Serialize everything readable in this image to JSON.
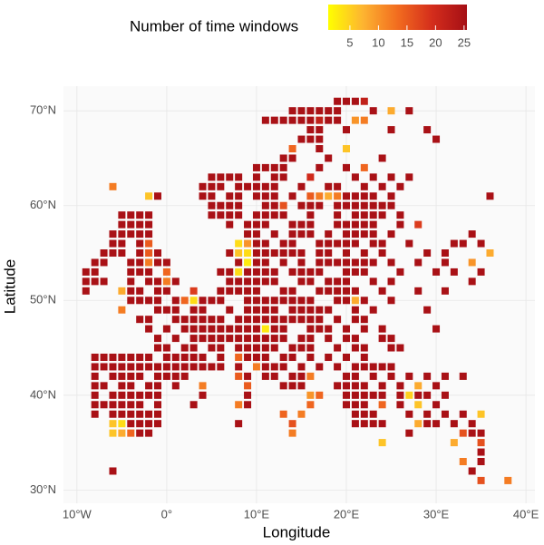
{
  "chart_data": {
    "type": "tile-map",
    "legend_title": "Number of time windows",
    "xlabel": "Longitude",
    "ylabel": "Latitude",
    "xlim": [
      -11.5,
      41
    ],
    "ylim": [
      28.6,
      72.6
    ],
    "xticks": [
      {
        "value": -10,
        "label": "10°W"
      },
      {
        "value": 0,
        "label": "0°"
      },
      {
        "value": 10,
        "label": "10°E"
      },
      {
        "value": 20,
        "label": "20°E"
      },
      {
        "value": 30,
        "label": "30°E"
      },
      {
        "value": 40,
        "label": "40°E"
      }
    ],
    "yticks": [
      {
        "value": 30,
        "label": "30°N"
      },
      {
        "value": 40,
        "label": "40°N"
      },
      {
        "value": 50,
        "label": "50°N"
      },
      {
        "value": 60,
        "label": "60°N"
      },
      {
        "value": 70,
        "label": "70°N"
      }
    ],
    "grid": true,
    "clim": [
      1.2,
      25.5
    ],
    "colorbar_ticks": [
      5,
      10,
      15,
      20,
      25
    ],
    "colors": [
      "#ffff00",
      "#fdb431",
      "#f26c1f",
      "#d42d1c",
      "#a50f15"
    ],
    "x": [
      19,
      20,
      21,
      22,
      14,
      15,
      16,
      17,
      18,
      19,
      23,
      25,
      27,
      11,
      12,
      13,
      14,
      15,
      16,
      17,
      18,
      19,
      21,
      22,
      16,
      17,
      20,
      25,
      29,
      15,
      16,
      17,
      30,
      14,
      17,
      20,
      13,
      14,
      18,
      24,
      10,
      11,
      12,
      13,
      17,
      20,
      22,
      5,
      6,
      7,
      8,
      10,
      12,
      13,
      16,
      21,
      23,
      25,
      27,
      -6,
      4,
      5,
      6,
      8,
      9,
      10,
      11,
      12,
      15,
      18,
      19,
      22,
      24,
      26,
      -2,
      -1,
      4,
      5,
      7,
      8,
      10,
      11,
      12,
      14,
      16,
      17,
      18,
      19,
      20,
      21,
      22,
      23,
      25,
      36,
      5,
      6,
      7,
      8,
      11,
      12,
      13,
      15,
      16,
      17,
      19,
      20,
      21,
      22,
      23,
      24,
      25,
      -5,
      -4,
      -3,
      -2,
      5,
      6,
      7,
      8,
      10,
      11,
      12,
      13,
      16,
      19,
      21,
      22,
      23,
      24,
      26,
      -5,
      -4,
      -3,
      -2,
      7,
      9,
      10,
      11,
      14,
      15,
      16,
      19,
      20,
      21,
      22,
      23,
      26,
      28,
      -6,
      -5,
      -4,
      -3,
      -2,
      9,
      10,
      12,
      14,
      15,
      16,
      18,
      20,
      21,
      22,
      23,
      25,
      34,
      -6,
      -5,
      -3,
      -2,
      8,
      9,
      10,
      11,
      13,
      14,
      17,
      18,
      19,
      20,
      21,
      23,
      24,
      27,
      32,
      33,
      35,
      -7,
      -6,
      -5,
      -3,
      -2,
      -1,
      7,
      8,
      9,
      10,
      11,
      12,
      13,
      14,
      15,
      17,
      18,
      20,
      22,
      24,
      29,
      31,
      36,
      -8,
      -7,
      -4,
      -3,
      -2,
      -1,
      0,
      8,
      9,
      10,
      11,
      13,
      15,
      17,
      18,
      19,
      20,
      21,
      22,
      23,
      25,
      28,
      31,
      34,
      -9,
      -8,
      -4,
      -3,
      -2,
      0,
      6,
      7,
      8,
      9,
      10,
      11,
      12,
      14,
      15,
      16,
      17,
      20,
      21,
      22,
      26,
      30,
      32,
      35,
      -9,
      -8,
      -7,
      -4,
      -2,
      -1,
      0,
      1,
      7,
      8,
      9,
      10,
      11,
      12,
      15,
      16,
      18,
      19,
      20,
      23,
      25,
      34,
      -9,
      -5,
      -4,
      -3,
      -1,
      0,
      3,
      6,
      7,
      8,
      9,
      10,
      13,
      14,
      17,
      18,
      19,
      20,
      21,
      24,
      28,
      31,
      -4,
      -3,
      -2,
      -1,
      1,
      2,
      3,
      4,
      5,
      6,
      9,
      10,
      11,
      12,
      13,
      14,
      15,
      16,
      19,
      20,
      21,
      22,
      25,
      -5,
      -1,
      0,
      1,
      3,
      4,
      7,
      9,
      10,
      11,
      12,
      14,
      15,
      16,
      17,
      18,
      21,
      23,
      29,
      -3,
      -2,
      1,
      2,
      3,
      4,
      5,
      6,
      8,
      9,
      10,
      11,
      12,
      13,
      14,
      15,
      16,
      17,
      19,
      21,
      22,
      -2,
      0,
      2,
      3,
      4,
      5,
      6,
      7,
      8,
      9,
      10,
      11,
      12,
      13,
      16,
      17,
      18,
      20,
      22,
      24,
      30,
      -1,
      1,
      3,
      4,
      5,
      6,
      7,
      8,
      9,
      10,
      11,
      12,
      13,
      15,
      16,
      18,
      20,
      21,
      24,
      25,
      -1,
      0,
      2,
      3,
      5,
      6,
      8,
      9,
      10,
      11,
      12,
      14,
      15,
      16,
      19,
      21,
      22,
      25,
      26,
      -8,
      -7,
      -6,
      -5,
      -4,
      -3,
      -2,
      0,
      1,
      2,
      3,
      4,
      6,
      8,
      9,
      10,
      11,
      13,
      14,
      16,
      18,
      20,
      22,
      -8,
      -7,
      -6,
      -5,
      -4,
      -3,
      -2,
      -1,
      0,
      1,
      2,
      3,
      4,
      5,
      6,
      8,
      10,
      11,
      12,
      13,
      15,
      17,
      19,
      21,
      22,
      23,
      24,
      25,
      -8,
      -6,
      -5,
      -4,
      -3,
      -1,
      0,
      1,
      2,
      8,
      9,
      11,
      12,
      14,
      15,
      16,
      20,
      21,
      23,
      25,
      27,
      29,
      31,
      33,
      -8,
      -7,
      -5,
      -4,
      -2,
      -1,
      1,
      4,
      9,
      13,
      14,
      15,
      19,
      20,
      21,
      22,
      24,
      26,
      28,
      30,
      -8,
      -6,
      -5,
      -4,
      -3,
      -2,
      -1,
      4,
      9,
      16,
      17,
      20,
      21,
      22,
      23,
      24,
      26,
      27,
      28,
      29,
      31,
      -8,
      -7,
      -6,
      -5,
      -4,
      -3,
      -1,
      3,
      8,
      9,
      16,
      20,
      21,
      22,
      24,
      26,
      28,
      30,
      -8,
      -6,
      -5,
      -4,
      -3,
      -2,
      -1,
      13,
      15,
      21,
      22,
      23,
      27,
      29,
      31,
      33,
      35,
      -6,
      -5,
      -4,
      -3,
      -2,
      -1,
      8,
      14,
      21,
      22,
      23,
      24,
      28,
      29,
      30,
      32,
      34,
      -6,
      -5,
      -4,
      -3,
      -2,
      14,
      27,
      33,
      34,
      35,
      24,
      32,
      35,
      35,
      33,
      35,
      -6,
      34,
      35,
      38
    ],
    "y": [
      71,
      71,
      71,
      71,
      70,
      70,
      70,
      70,
      70,
      70,
      70,
      70,
      70,
      69,
      69,
      69,
      69,
      69,
      69,
      69,
      69,
      69,
      69,
      69,
      68,
      68,
      68,
      68,
      68,
      67,
      67,
      67,
      67,
      66,
      66,
      66,
      65,
      65,
      65,
      65,
      64,
      64,
      64,
      64,
      64,
      64,
      64,
      63,
      63,
      63,
      63,
      63,
      63,
      63,
      63,
      63,
      63,
      63,
      63,
      62,
      62,
      62,
      62,
      62,
      62,
      62,
      62,
      62,
      62,
      62,
      62,
      62,
      62,
      62,
      61,
      61,
      61,
      61,
      61,
      61,
      61,
      61,
      61,
      61,
      61,
      61,
      61,
      61,
      61,
      61,
      61,
      61,
      61,
      61,
      60,
      60,
      60,
      60,
      60,
      60,
      60,
      60,
      60,
      60,
      60,
      60,
      60,
      60,
      60,
      60,
      60,
      59,
      59,
      59,
      59,
      59,
      59,
      59,
      59,
      59,
      59,
      59,
      59,
      59,
      59,
      59,
      59,
      59,
      59,
      59,
      58,
      58,
      58,
      58,
      58,
      58,
      58,
      58,
      58,
      58,
      58,
      58,
      58,
      58,
      58,
      58,
      58,
      58,
      57,
      57,
      57,
      57,
      57,
      57,
      57,
      57,
      57,
      57,
      57,
      57,
      57,
      57,
      57,
      57,
      57,
      57,
      56,
      56,
      56,
      56,
      56,
      56,
      56,
      56,
      56,
      56,
      56,
      56,
      56,
      56,
      56,
      56,
      56,
      56,
      56,
      56,
      56,
      55,
      55,
      55,
      55,
      55,
      55,
      55,
      55,
      55,
      55,
      55,
      55,
      55,
      55,
      55,
      55,
      55,
      55,
      55,
      55,
      55,
      55,
      55,
      54,
      54,
      54,
      54,
      54,
      54,
      54,
      54,
      54,
      54,
      54,
      54,
      54,
      54,
      54,
      54,
      54,
      54,
      54,
      54,
      54,
      54,
      54,
      54,
      53,
      53,
      53,
      53,
      53,
      53,
      53,
      53,
      53,
      53,
      53,
      53,
      53,
      53,
      53,
      53,
      53,
      53,
      53,
      53,
      53,
      53,
      53,
      53,
      52,
      52,
      52,
      52,
      52,
      52,
      52,
      52,
      52,
      52,
      52,
      52,
      52,
      52,
      52,
      52,
      52,
      52,
      52,
      52,
      52,
      52,
      51,
      51,
      51,
      51,
      51,
      51,
      51,
      51,
      51,
      51,
      51,
      51,
      51,
      51,
      51,
      51,
      51,
      51,
      51,
      51,
      51,
      51,
      50,
      50,
      50,
      50,
      50,
      50,
      50,
      50,
      50,
      50,
      50,
      50,
      50,
      50,
      50,
      50,
      50,
      50,
      50,
      50,
      50,
      50,
      50,
      49,
      49,
      49,
      49,
      49,
      49,
      49,
      49,
      49,
      49,
      49,
      49,
      49,
      49,
      49,
      49,
      49,
      49,
      49,
      48,
      48,
      48,
      48,
      48,
      48,
      48,
      48,
      48,
      48,
      48,
      48,
      48,
      48,
      48,
      48,
      48,
      48,
      48,
      48,
      48,
      47,
      47,
      47,
      47,
      47,
      47,
      47,
      47,
      47,
      47,
      47,
      47,
      47,
      47,
      47,
      47,
      47,
      47,
      47,
      47,
      47,
      46,
      46,
      46,
      46,
      46,
      46,
      46,
      46,
      46,
      46,
      46,
      46,
      46,
      46,
      46,
      46,
      46,
      46,
      46,
      46,
      45,
      45,
      45,
      45,
      45,
      45,
      45,
      45,
      45,
      45,
      45,
      45,
      45,
      45,
      45,
      45,
      45,
      45,
      45,
      44,
      44,
      44,
      44,
      44,
      44,
      44,
      44,
      44,
      44,
      44,
      44,
      44,
      44,
      44,
      44,
      44,
      44,
      44,
      44,
      44,
      44,
      44,
      43,
      43,
      43,
      43,
      43,
      43,
      43,
      43,
      43,
      43,
      43,
      43,
      43,
      43,
      43,
      43,
      43,
      43,
      43,
      43,
      43,
      43,
      43,
      43,
      43,
      43,
      43,
      43,
      42,
      42,
      42,
      42,
      42,
      42,
      42,
      42,
      42,
      42,
      42,
      42,
      42,
      42,
      42,
      42,
      42,
      42,
      42,
      42,
      42,
      42,
      42,
      42,
      41,
      41,
      41,
      41,
      41,
      41,
      41,
      41,
      41,
      41,
      41,
      41,
      41,
      41,
      41,
      41,
      41,
      41,
      41,
      41,
      40,
      40,
      40,
      40,
      40,
      40,
      40,
      40,
      40,
      40,
      40,
      40,
      40,
      40,
      40,
      40,
      40,
      40,
      40,
      40,
      40,
      39,
      39,
      39,
      39,
      39,
      39,
      39,
      39,
      39,
      39,
      39,
      39,
      39,
      39,
      39,
      39,
      39,
      39,
      38,
      38,
      38,
      38,
      38,
      38,
      38,
      38,
      38,
      38,
      38,
      38,
      38,
      38,
      38,
      38,
      38,
      37,
      37,
      37,
      37,
      37,
      37,
      37,
      37,
      37,
      37,
      37,
      37,
      37,
      37,
      37,
      37,
      37,
      36,
      36,
      36,
      36,
      36,
      36,
      36,
      36,
      36,
      36,
      35,
      35,
      35,
      34,
      33,
      33,
      32,
      32,
      31,
      31
    ],
    "values": [
      25,
      25,
      25,
      22,
      25,
      25,
      25,
      25,
      25,
      25,
      25,
      8,
      25,
      25,
      25,
      25,
      25,
      25,
      25,
      22,
      25,
      25,
      10,
      12,
      25,
      25,
      25,
      25,
      25,
      25,
      25,
      25,
      25,
      14,
      25,
      6,
      25,
      25,
      25,
      25,
      25,
      25,
      25,
      25,
      25,
      25,
      14,
      25,
      25,
      25,
      25,
      25,
      25,
      25,
      20,
      25,
      25,
      25,
      25,
      12,
      25,
      25,
      25,
      25,
      25,
      25,
      25,
      25,
      25,
      25,
      25,
      25,
      25,
      25,
      6,
      25,
      25,
      25,
      25,
      25,
      25,
      25,
      25,
      25,
      15,
      12,
      8,
      12,
      25,
      25,
      25,
      25,
      25,
      25,
      25,
      25,
      25,
      25,
      25,
      25,
      16,
      25,
      25,
      25,
      25,
      25,
      25,
      25,
      25,
      25,
      25,
      25,
      25,
      25,
      25,
      25,
      25,
      25,
      25,
      25,
      25,
      25,
      25,
      25,
      25,
      25,
      25,
      25,
      25,
      25,
      25,
      25,
      25,
      25,
      25,
      25,
      25,
      25,
      25,
      25,
      25,
      25,
      25,
      25,
      25,
      25,
      25,
      18,
      25,
      25,
      25,
      25,
      25,
      25,
      25,
      25,
      25,
      25,
      25,
      25,
      25,
      25,
      25,
      25,
      25,
      25,
      25,
      25,
      25,
      15,
      4,
      10,
      25,
      25,
      25,
      25,
      25,
      25,
      25,
      25,
      25,
      25,
      25,
      25,
      25,
      25,
      25,
      25,
      25,
      25,
      25,
      15,
      25,
      25,
      6,
      4,
      25,
      25,
      25,
      25,
      25,
      25,
      25,
      25,
      25,
      25,
      25,
      25,
      25,
      8,
      25,
      25,
      25,
      25,
      12,
      25,
      25,
      25,
      3,
      25,
      25,
      25,
      25,
      25,
      25,
      25,
      25,
      25,
      25,
      25,
      25,
      25,
      25,
      10,
      25,
      25,
      25,
      25,
      25,
      14,
      25,
      25,
      4,
      25,
      25,
      25,
      25,
      25,
      25,
      25,
      25,
      25,
      25,
      25,
      25,
      25,
      25,
      25,
      25,
      25,
      25,
      25,
      25,
      25,
      12,
      25,
      25,
      25,
      25,
      25,
      25,
      25,
      25,
      25,
      25,
      25,
      25,
      25,
      25,
      25,
      25,
      8,
      25,
      25,
      25,
      25,
      18,
      25,
      25,
      25,
      25,
      25,
      25,
      25,
      25,
      25,
      25,
      25,
      25,
      25,
      25,
      25,
      25,
      25,
      25,
      25,
      25,
      14,
      4,
      25,
      25,
      25,
      25,
      25,
      25,
      25,
      25,
      25,
      25,
      25,
      25,
      25,
      8,
      25,
      25,
      12,
      25,
      25,
      25,
      25,
      25,
      25,
      25,
      25,
      25,
      25,
      25,
      25,
      25,
      25,
      25,
      25,
      25,
      25,
      25,
      25,
      25,
      25,
      25,
      25,
      25,
      25,
      25,
      25,
      25,
      25,
      25,
      25,
      25,
      25,
      25,
      25,
      25,
      25,
      25,
      25,
      25,
      25,
      25,
      25,
      25,
      25,
      25,
      25,
      25,
      25,
      3,
      25,
      25,
      25,
      25,
      25,
      25,
      25,
      25,
      25,
      25,
      25,
      25,
      25,
      25,
      25,
      25,
      25,
      25,
      25,
      25,
      25,
      25,
      25,
      25,
      25,
      25,
      25,
      25,
      25,
      25,
      25,
      25,
      25,
      25,
      25,
      25,
      25,
      25,
      25,
      25,
      25,
      25,
      25,
      25,
      25,
      25,
      25,
      25,
      25,
      25,
      25,
      25,
      25,
      25,
      25,
      25,
      25,
      25,
      25,
      25,
      25,
      14,
      25,
      25,
      25,
      25,
      25,
      25,
      25,
      25,
      25,
      25,
      25,
      25,
      25,
      25,
      25,
      25,
      25,
      25,
      25,
      25,
      25,
      25,
      25,
      25,
      25,
      12,
      25,
      25,
      25,
      25,
      25,
      25,
      25,
      25,
      25,
      25,
      25,
      25,
      25,
      25,
      25,
      25,
      25,
      25,
      25,
      25,
      15,
      25,
      25,
      25,
      25,
      25,
      12,
      25,
      25,
      25,
      25,
      25,
      25,
      25,
      25,
      25,
      25,
      25,
      25,
      25,
      25,
      25,
      12,
      15,
      25,
      25,
      25,
      25,
      25,
      25,
      25,
      25,
      25,
      8,
      25,
      25,
      25,
      25,
      25,
      25,
      25,
      25,
      25,
      25,
      10,
      14,
      25,
      25,
      25,
      25,
      25,
      25,
      5,
      25,
      25,
      25,
      25,
      25,
      25,
      25,
      25,
      25,
      25,
      25,
      12,
      25,
      14,
      25,
      25,
      25,
      14,
      25,
      6,
      25,
      25,
      25,
      25,
      25,
      25,
      25,
      25,
      14,
      12,
      25,
      25,
      25,
      25,
      25,
      25,
      25,
      6,
      6,
      4,
      25,
      25,
      25,
      25,
      25,
      16,
      25,
      25,
      25,
      25,
      8,
      25,
      25,
      25,
      25,
      6,
      8,
      14,
      25,
      25,
      12,
      25,
      16,
      25,
      25,
      6,
      8,
      16,
      25,
      12,
      25,
      25,
      25,
      16,
      12
    ]
  }
}
